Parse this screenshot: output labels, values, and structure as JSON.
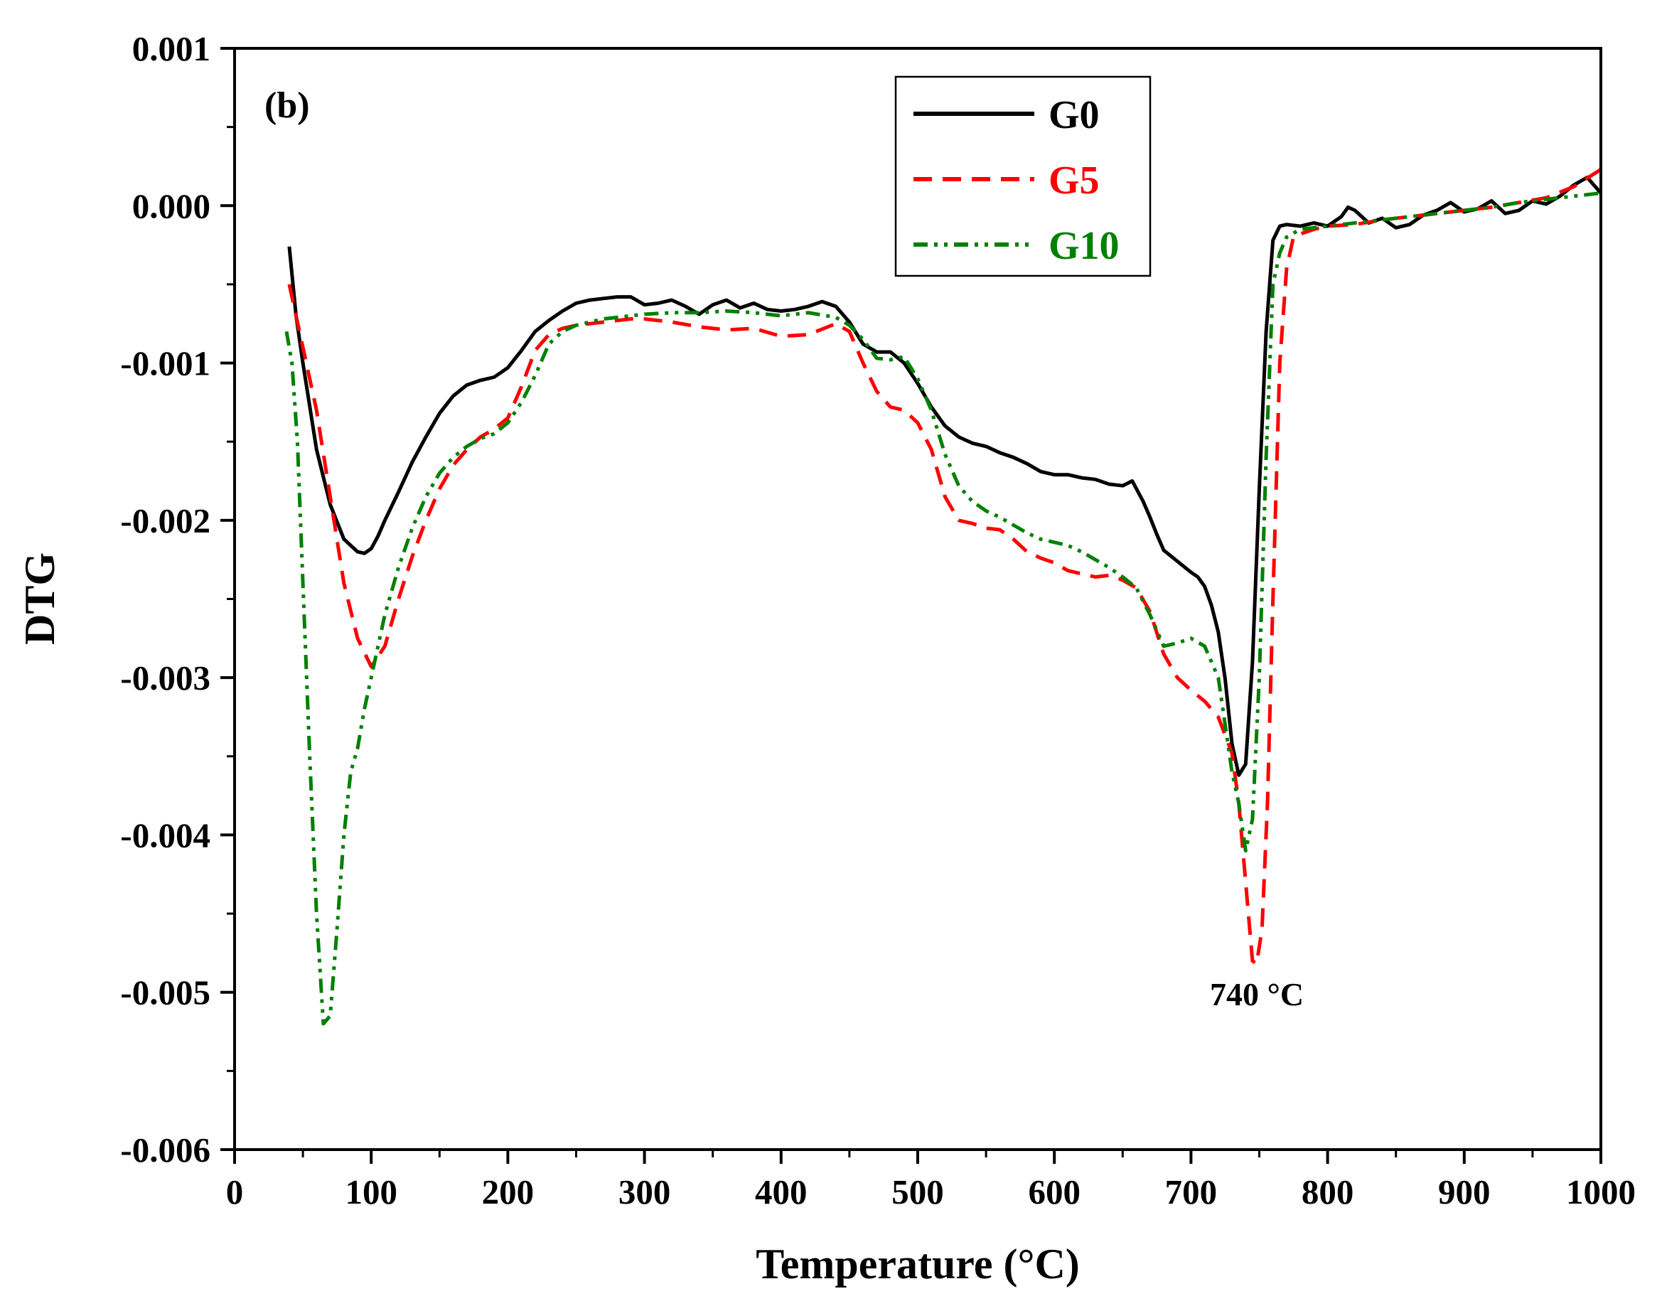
{
  "chart_data": {
    "type": "line",
    "title": "",
    "panel_label": "(b)",
    "xlabel": "Temperature (°C)",
    "ylabel": "DTG",
    "xlim": [
      0,
      1000
    ],
    "ylim": [
      -0.006,
      0.001
    ],
    "x_ticks": [
      0,
      100,
      200,
      300,
      400,
      500,
      600,
      700,
      800,
      900,
      1000
    ],
    "x_tick_labels": [
      "0",
      "100",
      "200",
      "300",
      "400",
      "500",
      "600",
      "700",
      "800",
      "900",
      "1000"
    ],
    "y_ticks": [
      0.001,
      0.0,
      -0.001,
      -0.002,
      -0.003,
      -0.004,
      -0.005,
      -0.006
    ],
    "y_tick_labels": [
      "0.001",
      "0.000",
      "-0.001",
      "-0.002",
      "-0.003",
      "-0.004",
      "-0.005",
      "-0.006"
    ],
    "grid": false,
    "legend_position": "top-center",
    "annotations": [
      {
        "text": "740 °C",
        "x": 748,
        "y": -0.00498
      }
    ],
    "series": [
      {
        "name": "G0",
        "color": "#000000",
        "dash": "solid",
        "x": [
          40,
          45,
          50,
          60,
          70,
          80,
          90,
          95,
          100,
          105,
          110,
          120,
          130,
          140,
          150,
          160,
          170,
          180,
          190,
          200,
          210,
          220,
          230,
          240,
          250,
          260,
          270,
          280,
          290,
          300,
          310,
          320,
          330,
          340,
          350,
          360,
          370,
          380,
          390,
          400,
          410,
          420,
          430,
          440,
          450,
          460,
          470,
          480,
          490,
          500,
          510,
          520,
          530,
          540,
          550,
          560,
          570,
          580,
          590,
          600,
          610,
          620,
          630,
          640,
          650,
          657,
          665,
          670,
          675,
          680,
          690,
          700,
          705,
          710,
          715,
          720,
          725,
          730,
          735,
          740,
          745,
          750,
          755,
          760,
          765,
          770,
          780,
          790,
          800,
          810,
          815,
          820,
          830,
          840,
          850,
          860,
          870,
          880,
          890,
          900,
          910,
          920,
          930,
          940,
          950,
          960,
          970,
          980,
          990,
          1000
        ],
        "y": [
          -0.00026,
          -0.0007,
          -0.001,
          -0.00155,
          -0.0019,
          -0.00212,
          -0.0022,
          -0.00221,
          -0.00218,
          -0.0021,
          -0.002,
          -0.00182,
          -0.00163,
          -0.00147,
          -0.00132,
          -0.00121,
          -0.00114,
          -0.00111,
          -0.00109,
          -0.00103,
          -0.00092,
          -0.0008,
          -0.00073,
          -0.00067,
          -0.00062,
          -0.0006,
          -0.00059,
          -0.00058,
          -0.00058,
          -0.00063,
          -0.00062,
          -0.0006,
          -0.00064,
          -0.00069,
          -0.00063,
          -0.0006,
          -0.00065,
          -0.00062,
          -0.00066,
          -0.00067,
          -0.00066,
          -0.00064,
          -0.00061,
          -0.00064,
          -0.00074,
          -0.00088,
          -0.00093,
          -0.00093,
          -0.001,
          -0.00113,
          -0.00128,
          -0.0014,
          -0.00147,
          -0.00151,
          -0.00153,
          -0.00157,
          -0.0016,
          -0.00164,
          -0.00169,
          -0.00171,
          -0.00171,
          -0.00173,
          -0.00174,
          -0.00177,
          -0.00178,
          -0.00175,
          -0.00188,
          -0.00198,
          -0.00209,
          -0.00219,
          -0.00226,
          -0.00233,
          -0.00236,
          -0.00242,
          -0.00254,
          -0.00271,
          -0.00301,
          -0.00342,
          -0.00362,
          -0.00355,
          -0.0029,
          -0.0018,
          -0.0008,
          -0.00022,
          -0.00013,
          -0.00012,
          -0.00013,
          -0.00011,
          -0.00013,
          -7e-05,
          -1e-05,
          -3e-05,
          -0.00011,
          -8e-05,
          -0.00014,
          -0.00012,
          -6e-05,
          -3e-05,
          2e-05,
          -4e-05,
          -2e-05,
          3e-05,
          -5e-05,
          -3e-05,
          3e-05,
          1e-05,
          6e-05,
          0.00013,
          0.00018,
          8e-05
        ]
      },
      {
        "name": "G5",
        "color": "#ff0000",
        "dash": "dashed",
        "x": [
          40,
          45,
          50,
          60,
          70,
          80,
          90,
          100,
          110,
          120,
          130,
          140,
          150,
          160,
          170,
          180,
          190,
          200,
          210,
          220,
          230,
          240,
          250,
          260,
          270,
          280,
          290,
          300,
          320,
          340,
          360,
          380,
          400,
          420,
          440,
          450,
          460,
          470,
          480,
          490,
          500,
          510,
          520,
          530,
          540,
          550,
          560,
          570,
          580,
          590,
          600,
          610,
          620,
          630,
          640,
          650,
          660,
          670,
          680,
          690,
          700,
          710,
          720,
          730,
          735,
          740,
          745,
          748,
          752,
          756,
          760,
          765,
          770,
          775,
          780,
          790,
          800,
          820,
          840,
          860,
          880,
          900,
          920,
          940,
          960,
          980,
          1000
        ],
        "y": [
          -0.0005,
          -0.0007,
          -0.0009,
          -0.0013,
          -0.00185,
          -0.0024,
          -0.00275,
          -0.00293,
          -0.0028,
          -0.0025,
          -0.00223,
          -0.002,
          -0.0018,
          -0.00165,
          -0.00155,
          -0.00147,
          -0.00142,
          -0.00135,
          -0.00115,
          -0.00092,
          -0.00082,
          -0.00078,
          -0.00076,
          -0.00075,
          -0.00074,
          -0.00073,
          -0.00072,
          -0.00072,
          -0.00074,
          -0.00077,
          -0.00079,
          -0.00078,
          -0.00083,
          -0.00082,
          -0.00075,
          -0.0008,
          -0.001,
          -0.00118,
          -0.00128,
          -0.0013,
          -0.00138,
          -0.00155,
          -0.00185,
          -0.002,
          -0.00202,
          -0.00205,
          -0.00206,
          -0.00212,
          -0.0022,
          -0.00224,
          -0.00227,
          -0.00232,
          -0.00234,
          -0.00236,
          -0.00235,
          -0.00238,
          -0.00243,
          -0.00258,
          -0.00285,
          -0.003,
          -0.00308,
          -0.00315,
          -0.00325,
          -0.00348,
          -0.0038,
          -0.0043,
          -0.0048,
          -0.00482,
          -0.0046,
          -0.0038,
          -0.0025,
          -0.001,
          -0.0004,
          -0.0002,
          -0.00018,
          -0.00015,
          -0.00013,
          -0.00012,
          -9e-05,
          -7e-05,
          -5e-05,
          -3e-05,
          -1e-05,
          2e-05,
          5e-05,
          0.00012,
          0.00023
        ]
      },
      {
        "name": "G10",
        "color": "#008000",
        "dash": "dash-dot-dot",
        "x": [
          38,
          42,
          46,
          50,
          55,
          60,
          65,
          70,
          75,
          80,
          85,
          90,
          95,
          100,
          110,
          120,
          130,
          140,
          150,
          160,
          170,
          180,
          190,
          200,
          210,
          220,
          230,
          240,
          250,
          260,
          270,
          280,
          290,
          300,
          320,
          340,
          360,
          380,
          400,
          420,
          440,
          450,
          460,
          470,
          480,
          490,
          500,
          510,
          520,
          530,
          540,
          550,
          560,
          570,
          580,
          590,
          600,
          610,
          620,
          630,
          640,
          650,
          660,
          670,
          680,
          690,
          700,
          710,
          720,
          725,
          730,
          735,
          740,
          745,
          750,
          755,
          760,
          765,
          770,
          780,
          800,
          820,
          840,
          860,
          880,
          900,
          920,
          940,
          960,
          980,
          1000
        ],
        "y": [
          -0.0008,
          -0.001,
          -0.0015,
          -0.0024,
          -0.0035,
          -0.0045,
          -0.0052,
          -0.00515,
          -0.0046,
          -0.004,
          -0.0036,
          -0.00345,
          -0.0032,
          -0.003,
          -0.0026,
          -0.0023,
          -0.00205,
          -0.00185,
          -0.0017,
          -0.0016,
          -0.00153,
          -0.00148,
          -0.00145,
          -0.00138,
          -0.00125,
          -0.00108,
          -0.00088,
          -0.0008,
          -0.00076,
          -0.00074,
          -0.00072,
          -0.00071,
          -0.0007,
          -0.00069,
          -0.00068,
          -0.00068,
          -0.00067,
          -0.00068,
          -0.0007,
          -0.00068,
          -0.00071,
          -0.00076,
          -0.00085,
          -0.00097,
          -0.00098,
          -0.00096,
          -0.0011,
          -0.0013,
          -0.00158,
          -0.00178,
          -0.00188,
          -0.00194,
          -0.00198,
          -0.00203,
          -0.00208,
          -0.00212,
          -0.00214,
          -0.00216,
          -0.0022,
          -0.00225,
          -0.0023,
          -0.00236,
          -0.00243,
          -0.0026,
          -0.0028,
          -0.00278,
          -0.00275,
          -0.0028,
          -0.003,
          -0.0033,
          -0.0036,
          -0.0038,
          -0.0041,
          -0.0039,
          -0.003,
          -0.0016,
          -0.0005,
          -0.0003,
          -0.0002,
          -0.00015,
          -0.00013,
          -0.00011,
          -9e-05,
          -7e-05,
          -5e-05,
          -3e-05,
          -1e-05,
          2e-05,
          4e-05,
          6e-05,
          8e-05
        ]
      }
    ]
  }
}
